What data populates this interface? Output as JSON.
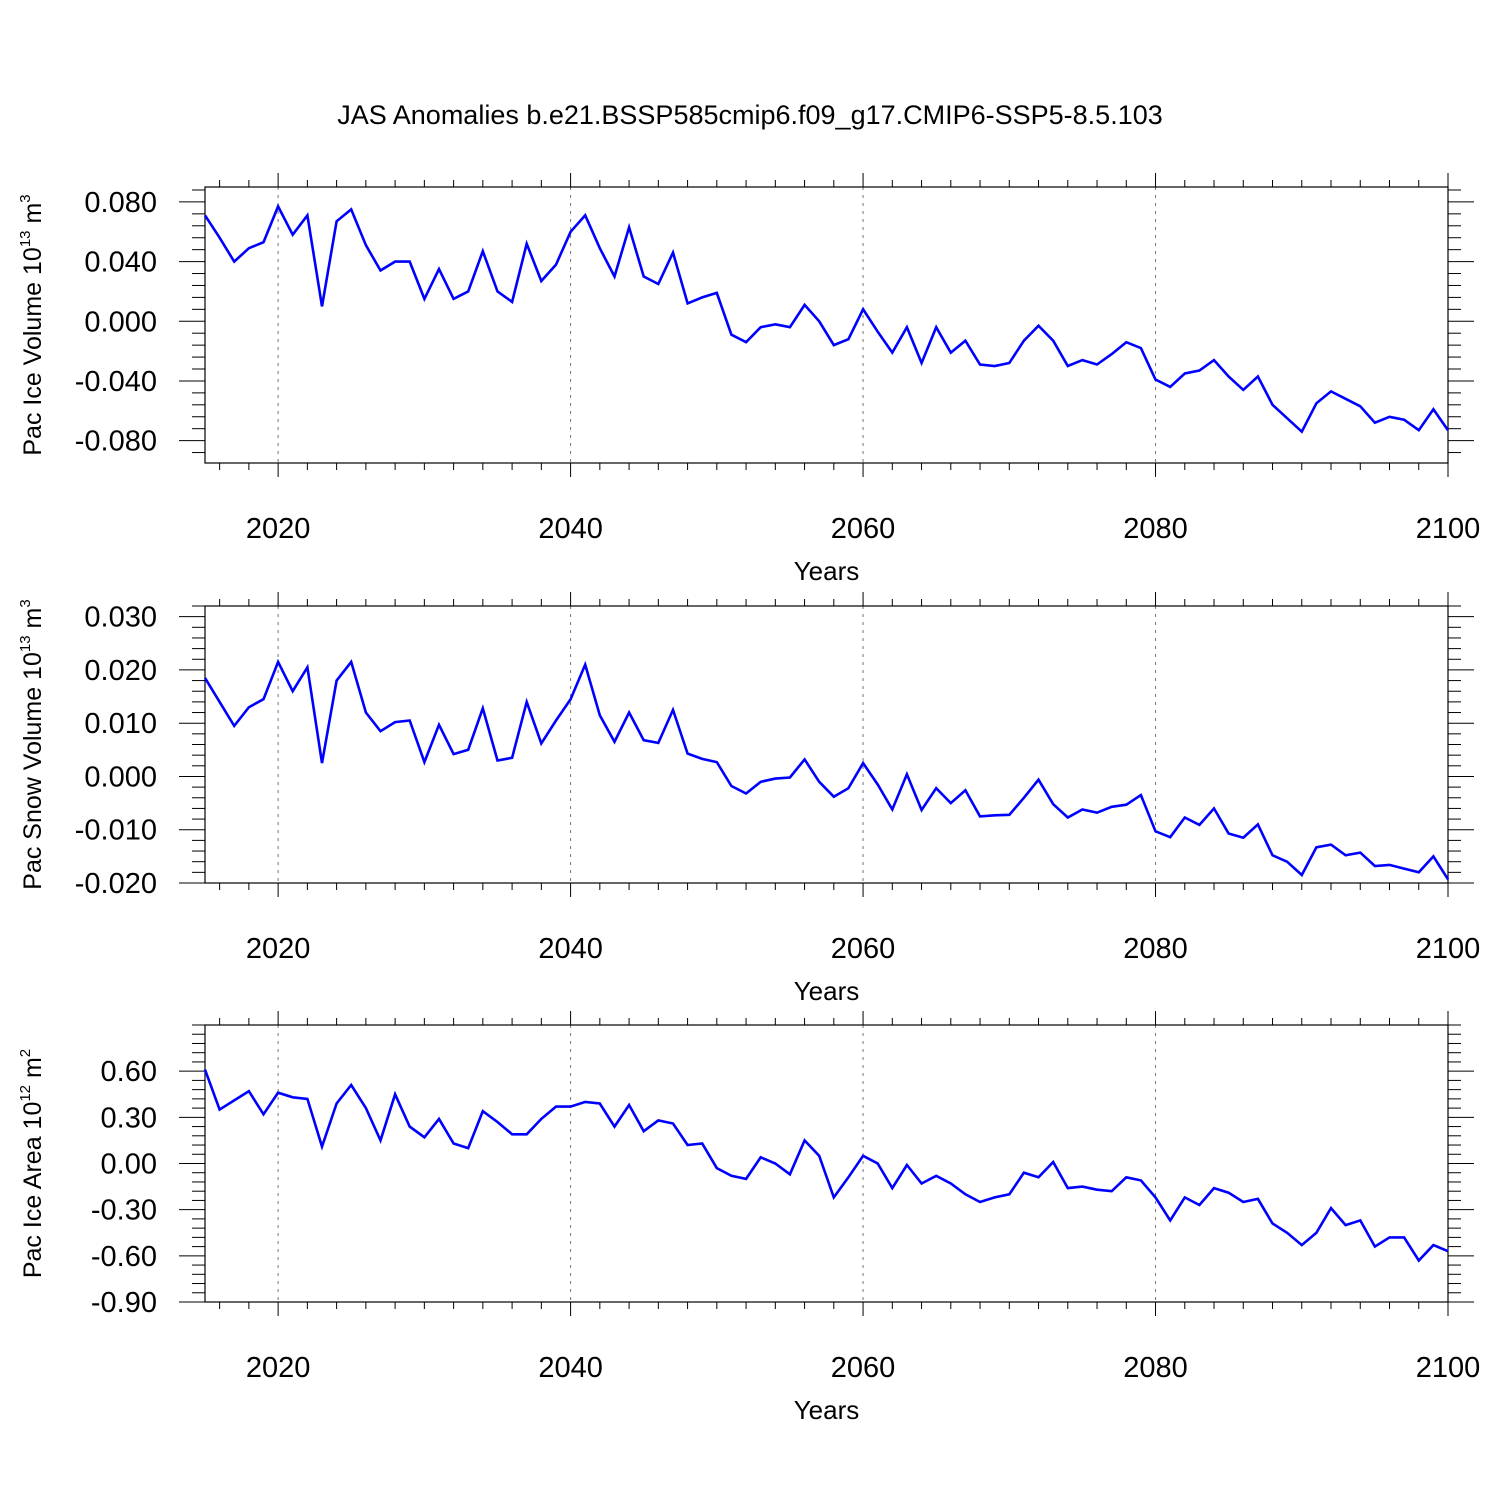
{
  "figure": {
    "title": "JAS Anomalies b.e21.BSSP585cmip6.f09_g17.CMIP6-SSP5-8.5.103",
    "series_color": "#0000ff"
  },
  "chart_data": [
    {
      "type": "line",
      "xlabel": "Years",
      "ylabel": "Pac Ice Volume 10",
      "ylabel_exp": "13",
      "ylabel_unit": " m",
      "ylabel_unit_exp": "3",
      "xlim": [
        2015,
        2100
      ],
      "ylim": [
        -0.095,
        0.09
      ],
      "xticks": [
        2020,
        2040,
        2060,
        2080,
        2100
      ],
      "yticks": [
        -0.08,
        -0.04,
        0.0,
        0.04,
        0.08
      ],
      "ytick_labels": [
        "-0.080",
        "-0.040",
        "0.000",
        "0.040",
        "0.080"
      ],
      "grid": "vertical dashed at major x ticks",
      "x_start": 2015,
      "values": [
        0.071,
        0.056,
        0.04,
        0.049,
        0.053,
        0.077,
        0.058,
        0.071,
        0.01,
        0.067,
        0.075,
        0.051,
        0.034,
        0.04,
        0.04,
        0.015,
        0.035,
        0.015,
        0.02,
        0.047,
        0.02,
        0.013,
        0.052,
        0.027,
        0.038,
        0.06,
        0.071,
        0.049,
        0.03,
        0.063,
        0.03,
        0.025,
        0.046,
        0.012,
        0.016,
        0.019,
        -0.009,
        -0.014,
        -0.004,
        -0.002,
        -0.004,
        0.011,
        0.0,
        -0.016,
        -0.012,
        0.008,
        -0.007,
        -0.021,
        -0.004,
        -0.028,
        -0.004,
        -0.021,
        -0.013,
        -0.029,
        -0.03,
        -0.028,
        -0.013,
        -0.003,
        -0.013,
        -0.03,
        -0.026,
        -0.029,
        -0.022,
        -0.014,
        -0.018,
        -0.039,
        -0.044,
        -0.035,
        -0.033,
        -0.026,
        -0.037,
        -0.046,
        -0.037,
        -0.056,
        -0.065,
        -0.074,
        -0.055,
        -0.047,
        -0.052,
        -0.057,
        -0.068,
        -0.064,
        -0.066,
        -0.073,
        -0.059,
        -0.073
      ]
    },
    {
      "type": "line",
      "xlabel": "Years",
      "ylabel": "Pac Snow Volume 10",
      "ylabel_exp": "13",
      "ylabel_unit": " m",
      "ylabel_unit_exp": "3",
      "xlim": [
        2015,
        2100
      ],
      "ylim": [
        -0.02,
        0.032
      ],
      "xticks": [
        2020,
        2040,
        2060,
        2080,
        2100
      ],
      "yticks": [
        -0.02,
        -0.01,
        0.0,
        0.01,
        0.02,
        0.03
      ],
      "ytick_labels": [
        "-0.020",
        "-0.010",
        "0.000",
        "0.010",
        "0.020",
        "0.030"
      ],
      "grid": "vertical dashed at major x ticks",
      "x_start": 2015,
      "values": [
        0.0185,
        0.014,
        0.0095,
        0.013,
        0.0145,
        0.0215,
        0.016,
        0.0205,
        0.0025,
        0.018,
        0.0215,
        0.012,
        0.0085,
        0.0102,
        0.0105,
        0.0027,
        0.0097,
        0.0042,
        0.005,
        0.0128,
        0.003,
        0.0035,
        0.014,
        0.0062,
        0.0105,
        0.0145,
        0.021,
        0.0115,
        0.0065,
        0.012,
        0.0068,
        0.0063,
        0.0125,
        0.0043,
        0.0033,
        0.0027,
        -0.0018,
        -0.0032,
        -0.001,
        -0.0004,
        -0.0002,
        0.0032,
        -0.001,
        -0.0038,
        -0.0022,
        0.0025,
        -0.0015,
        -0.0062,
        0.0004,
        -0.0063,
        -0.0022,
        -0.005,
        -0.0026,
        -0.0075,
        -0.0073,
        -0.0072,
        -0.004,
        -0.0006,
        -0.0052,
        -0.0077,
        -0.0062,
        -0.0068,
        -0.0057,
        -0.0053,
        -0.0035,
        -0.0103,
        -0.0114,
        -0.0077,
        -0.0091,
        -0.006,
        -0.0107,
        -0.0115,
        -0.009,
        -0.0148,
        -0.016,
        -0.0185,
        -0.0133,
        -0.0128,
        -0.0148,
        -0.0143,
        -0.0168,
        -0.0166,
        -0.0173,
        -0.018,
        -0.015,
        -0.0193
      ]
    },
    {
      "type": "line",
      "xlabel": "Years",
      "ylabel": "Pac Ice Area 10",
      "ylabel_exp": "12",
      "ylabel_unit": " m",
      "ylabel_unit_exp": "2",
      "xlim": [
        2015,
        2100
      ],
      "ylim": [
        -0.9,
        0.9
      ],
      "xticks": [
        2020,
        2040,
        2060,
        2080,
        2100
      ],
      "yticks": [
        -0.9,
        -0.6,
        -0.3,
        0.0,
        0.3,
        0.6
      ],
      "ytick_labels": [
        "-0.90",
        "-0.60",
        "-0.30",
        "0.00",
        "0.30",
        "0.60"
      ],
      "grid": "vertical dashed at major x ticks",
      "x_start": 2015,
      "values": [
        0.61,
        0.35,
        0.41,
        0.47,
        0.32,
        0.46,
        0.43,
        0.42,
        0.11,
        0.39,
        0.51,
        0.36,
        0.15,
        0.45,
        0.24,
        0.17,
        0.29,
        0.13,
        0.1,
        0.34,
        0.27,
        0.19,
        0.19,
        0.29,
        0.37,
        0.37,
        0.4,
        0.39,
        0.24,
        0.38,
        0.21,
        0.28,
        0.26,
        0.12,
        0.13,
        -0.03,
        -0.08,
        -0.1,
        0.04,
        0.0,
        -0.07,
        0.15,
        0.05,
        -0.22,
        -0.09,
        0.05,
        0.0,
        -0.16,
        -0.01,
        -0.13,
        -0.08,
        -0.13,
        -0.2,
        -0.25,
        -0.22,
        -0.2,
        -0.06,
        -0.09,
        0.01,
        -0.16,
        -0.15,
        -0.17,
        -0.18,
        -0.09,
        -0.11,
        -0.22,
        -0.37,
        -0.22,
        -0.27,
        -0.16,
        -0.19,
        -0.25,
        -0.23,
        -0.39,
        -0.45,
        -0.53,
        -0.45,
        -0.29,
        -0.4,
        -0.37,
        -0.54,
        -0.48,
        -0.48,
        -0.63,
        -0.53,
        -0.57
      ]
    }
  ]
}
